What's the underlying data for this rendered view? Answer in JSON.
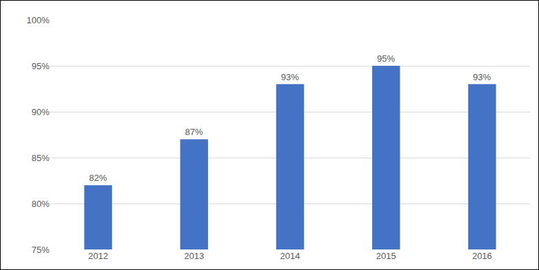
{
  "chart_data": {
    "type": "bar",
    "categories": [
      "2012",
      "2013",
      "2014",
      "2015",
      "2016"
    ],
    "values": [
      82,
      87,
      93,
      95,
      93
    ],
    "value_labels": [
      "82%",
      "87%",
      "93%",
      "95%",
      "93%"
    ],
    "data_labels": true,
    "color": "#4472c4",
    "ylim": [
      75,
      100
    ],
    "yticks": [
      {
        "value": 75,
        "label": "75%"
      },
      {
        "value": 80,
        "label": "80%"
      },
      {
        "value": 85,
        "label": "85%"
      },
      {
        "value": 90,
        "label": "90%"
      },
      {
        "value": 95,
        "label": "95%"
      },
      {
        "value": 100,
        "label": "100%"
      }
    ],
    "grid": true
  }
}
